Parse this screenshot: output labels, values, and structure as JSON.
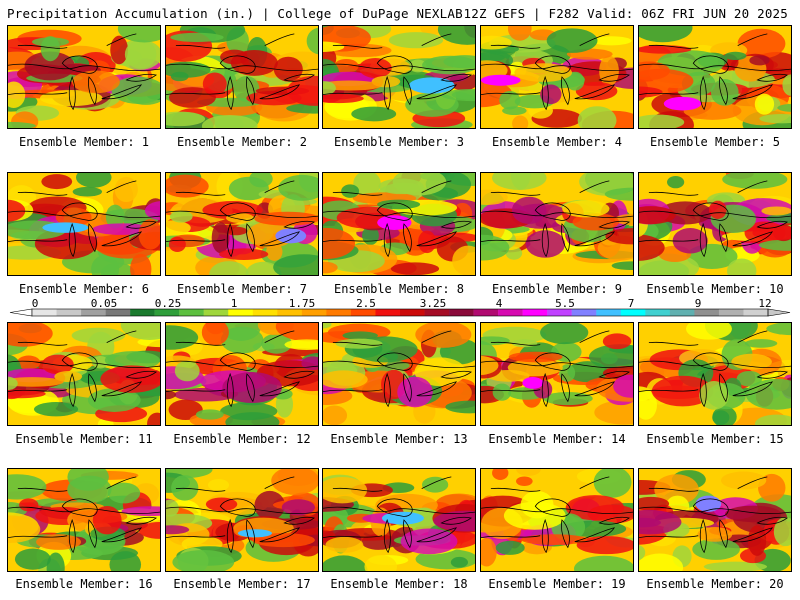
{
  "header": {
    "left": "Precipitation Accumulation (in.) | College of DuPage NEXLAB",
    "right": "12Z GEFS | F282 Valid: 06Z FRI JUN 20 2025"
  },
  "members": [
    {
      "label": "Ensemble Member: 1"
    },
    {
      "label": "Ensemble Member: 2"
    },
    {
      "label": "Ensemble Member: 3"
    },
    {
      "label": "Ensemble Member: 4"
    },
    {
      "label": "Ensemble Member: 5"
    },
    {
      "label": "Ensemble Member: 6"
    },
    {
      "label": "Ensemble Member: 7"
    },
    {
      "label": "Ensemble Member: 8"
    },
    {
      "label": "Ensemble Member: 9"
    },
    {
      "label": "Ensemble Member: 10"
    },
    {
      "label": "Ensemble Member: 11"
    },
    {
      "label": "Ensemble Member: 12"
    },
    {
      "label": "Ensemble Member: 13"
    },
    {
      "label": "Ensemble Member: 14"
    },
    {
      "label": "Ensemble Member: 15"
    },
    {
      "label": "Ensemble Member: 16"
    },
    {
      "label": "Ensemble Member: 17"
    },
    {
      "label": "Ensemble Member: 18"
    },
    {
      "label": "Ensemble Member: 19"
    },
    {
      "label": "Ensemble Member: 20"
    }
  ],
  "colorbar": {
    "labels": [
      "0",
      "0.05",
      "0.25",
      "1",
      "1.75",
      "2.5",
      "3.25",
      "4",
      "5.5",
      "7",
      "9",
      "12"
    ],
    "colors": [
      "#e6e6e6",
      "#c8c8c8",
      "#a0a0a0",
      "#787878",
      "#1a7a2e",
      "#2e9e3a",
      "#5cbf3f",
      "#9fd63c",
      "#ffff00",
      "#ffe000",
      "#ffc000",
      "#ff9f00",
      "#ff7a00",
      "#ff4a00",
      "#f01010",
      "#cc0a0a",
      "#a50c25",
      "#8a0a3a",
      "#b00a70",
      "#d60ab0",
      "#ff00ff",
      "#c040ff",
      "#8080ff",
      "#40c0ff",
      "#00ffff",
      "#40d0d0",
      "#60b0b0",
      "#909090",
      "#b0b0b0",
      "#d0d0d0"
    ]
  }
}
